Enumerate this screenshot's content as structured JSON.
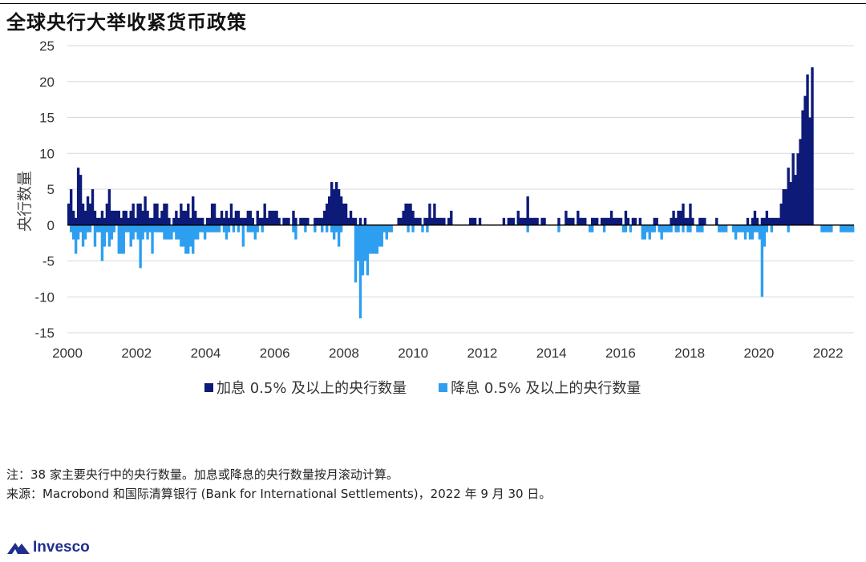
{
  "title": "全球央行大举收紧货币政策",
  "notes": {
    "note": "注：38 家主要央行中的央行数量。加息或降息的央行数量按月滚动计算。",
    "source": "来源：Macrobond 和国际清算银行 (Bank for International Settlements)，2022 年 9 月 30 日。"
  },
  "brand": {
    "name": "Invesco"
  },
  "colors": {
    "hikes": "#0d1a78",
    "cuts": "#2e9ff0",
    "grid": "#d9d9d9",
    "brand": "#1f2f8f"
  },
  "chart_data": {
    "type": "bar",
    "ylabel": "央行数量",
    "ylim": [
      -15,
      25
    ],
    "yticks": [
      25,
      20,
      15,
      10,
      5,
      0,
      -5,
      -10,
      -15
    ],
    "xlim": [
      2000,
      2022.75
    ],
    "xticks": [
      2000,
      2002,
      2004,
      2006,
      2008,
      2010,
      2012,
      2014,
      2016,
      2018,
      2020,
      2022
    ],
    "grid": "horizontal",
    "legend_position": "bottom",
    "x_start": "2000-01",
    "x_frequency": "monthly",
    "series": [
      {
        "name": "加息 0.5% 及以上的央行数量",
        "values": [
          3,
          5,
          2,
          1,
          8,
          7,
          3,
          2,
          4,
          3,
          5,
          2,
          1,
          1,
          2,
          1,
          3,
          5,
          2,
          2,
          2,
          2,
          1,
          2,
          2,
          1,
          2,
          3,
          1,
          3,
          3,
          2,
          4,
          2,
          1,
          1,
          3,
          3,
          1,
          2,
          3,
          3,
          1,
          0,
          1,
          2,
          1,
          3,
          2,
          2,
          3,
          1,
          4,
          2,
          1,
          1,
          1,
          0,
          1,
          1,
          3,
          3,
          1,
          1,
          2,
          1,
          2,
          1,
          3,
          1,
          2,
          2,
          1,
          1,
          1,
          2,
          2,
          1,
          0,
          2,
          1,
          1,
          3,
          1,
          2,
          2,
          2,
          2,
          1,
          0,
          1,
          1,
          1,
          0,
          2,
          1,
          0,
          1,
          1,
          1,
          1,
          0,
          0,
          1,
          1,
          1,
          1,
          2,
          3,
          4,
          6,
          5,
          6,
          5,
          4,
          3,
          3,
          1,
          2,
          1,
          1,
          0,
          1,
          0,
          1,
          0,
          0,
          0,
          0,
          0,
          0,
          0,
          0,
          0,
          0,
          0,
          0,
          0,
          1,
          1,
          2,
          3,
          3,
          3,
          2,
          1,
          1,
          1,
          0,
          1,
          1,
          3,
          1,
          3,
          1,
          1,
          1,
          1,
          0,
          1,
          2,
          0,
          0,
          0,
          0,
          0,
          0,
          0,
          1,
          1,
          1,
          0,
          1,
          0,
          0,
          0,
          0,
          0,
          0,
          0,
          0,
          0,
          1,
          0,
          1,
          1,
          1,
          0,
          2,
          1,
          1,
          1,
          4,
          1,
          1,
          1,
          1,
          0,
          1,
          1,
          0,
          0,
          0,
          0,
          0,
          1,
          0,
          0,
          2,
          1,
          1,
          1,
          0,
          2,
          1,
          1,
          1,
          0,
          0,
          1,
          1,
          1,
          0,
          1,
          1,
          1,
          1,
          2,
          1,
          1,
          1,
          1,
          0,
          2,
          1,
          0,
          1,
          1,
          0,
          1,
          0,
          0,
          0,
          0,
          0,
          1,
          1,
          0,
          0,
          0,
          0,
          0,
          1,
          2,
          1,
          2,
          2,
          3,
          1,
          1,
          3,
          1,
          0,
          0,
          1,
          1,
          1,
          0,
          0,
          0,
          0,
          1,
          0,
          0,
          0,
          0,
          0,
          0,
          0,
          0,
          0,
          0,
          0,
          0,
          1,
          0,
          1,
          2,
          1,
          0,
          1,
          1,
          2,
          1,
          1,
          1,
          1,
          1,
          3,
          5,
          5,
          8,
          6,
          10,
          7,
          10,
          12,
          16,
          18,
          21,
          15,
          22
        ]
      },
      {
        "name": "降息 0.5% 及以上的央行数量",
        "values": [
          0,
          -1,
          -2,
          -4,
          -2,
          -1,
          -3,
          -2,
          -1,
          -1,
          0,
          -3,
          -1,
          -1,
          -5,
          -3,
          -1,
          -3,
          -2,
          -1,
          0,
          -4,
          -4,
          -4,
          -1,
          -1,
          -3,
          -2,
          -1,
          -2,
          -6,
          -2,
          -1,
          -2,
          -1,
          -4,
          -1,
          -1,
          -1,
          -1,
          -2,
          -2,
          -2,
          -2,
          -1,
          -2,
          -2,
          -3,
          -3,
          -4,
          -4,
          -3,
          -4,
          -2,
          -2,
          -1,
          -1,
          -2,
          -1,
          -1,
          -1,
          -1,
          -1,
          -1,
          0,
          -1,
          -2,
          -1,
          0,
          -1,
          0,
          -1,
          0,
          -3,
          0,
          -1,
          -1,
          -1,
          -2,
          -1,
          0,
          -1,
          0,
          0,
          0,
          0,
          0,
          0,
          0,
          0,
          0,
          0,
          0,
          0,
          -1,
          -2,
          0,
          0,
          0,
          -1,
          0,
          0,
          0,
          -1,
          0,
          0,
          -1,
          0,
          -1,
          0,
          -1,
          -2,
          -1,
          -3,
          -1,
          0,
          0,
          0,
          0,
          0,
          -8,
          -5,
          -13,
          -7,
          -5,
          -7,
          -4,
          -4,
          -4,
          -4,
          -3,
          -3,
          -1,
          -2,
          -1,
          -1,
          0,
          0,
          0,
          0,
          0,
          0,
          -1,
          0,
          -1,
          0,
          0,
          0,
          -1,
          0,
          -1,
          0,
          0,
          0,
          0,
          0,
          0,
          0,
          0,
          0,
          0,
          0,
          0,
          0,
          0,
          0,
          0,
          0,
          0,
          0,
          0,
          0,
          0,
          0,
          0,
          0,
          0,
          0,
          0,
          0,
          0,
          0,
          0,
          0,
          0,
          0,
          0,
          0,
          0,
          0,
          0,
          0,
          -1,
          0,
          0,
          0,
          0,
          0,
          0,
          0,
          0,
          0,
          0,
          0,
          0,
          -1,
          0,
          0,
          0,
          0,
          0,
          0,
          0,
          0,
          0,
          0,
          0,
          0,
          -1,
          -1,
          0,
          0,
          0,
          0,
          -1,
          0,
          0,
          0,
          0,
          0,
          0,
          0,
          -1,
          -1,
          0,
          -1,
          0,
          0,
          0,
          0,
          -2,
          -2,
          -1,
          -2,
          -1,
          -1,
          0,
          -1,
          -2,
          -1,
          -1,
          -1,
          -1,
          0,
          -1,
          -1,
          0,
          -1,
          0,
          -1,
          -1,
          0,
          0,
          -1,
          -1,
          -1,
          0,
          0,
          0,
          0,
          0,
          0,
          -1,
          -1,
          -1,
          -1,
          0,
          0,
          -1,
          -2,
          -1,
          -1,
          -1,
          -2,
          -1,
          -2,
          -2,
          -1,
          -1,
          -2,
          -10,
          -3,
          -1,
          0,
          -1,
          0,
          0,
          0,
          0,
          0,
          0,
          -1,
          0,
          0,
          0,
          0,
          0,
          0,
          0,
          0,
          0,
          0,
          0,
          0,
          0,
          -1,
          -1,
          -1,
          -1,
          -1,
          0,
          0,
          0,
          -1,
          -1,
          -1,
          -1,
          -1,
          -1
        ]
      }
    ]
  }
}
